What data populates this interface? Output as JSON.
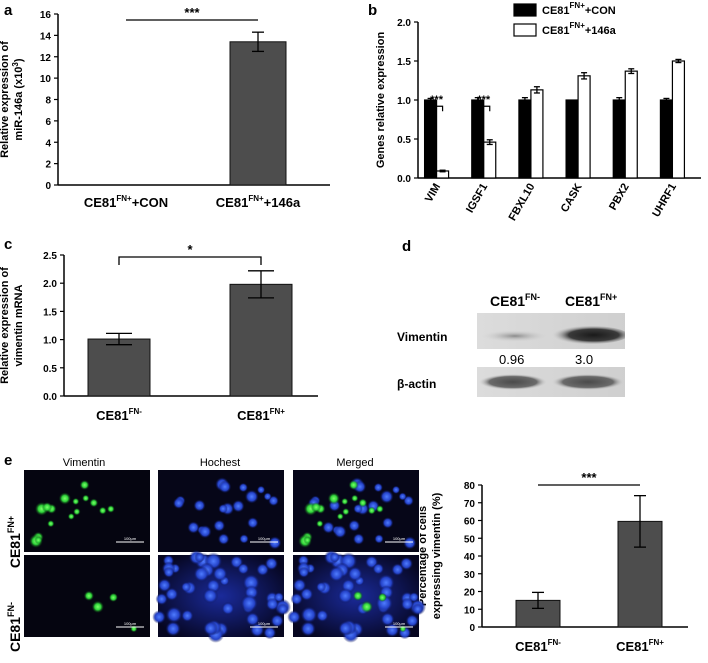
{
  "chart_data": [
    {
      "id": "a",
      "letter": "a",
      "type": "bar",
      "ylabel_line1": "Relative  expression of",
      "ylabel_line2": "miR-146a (x10",
      "ylabel_sup": "3",
      "ylabel_end": ")",
      "ylim": [
        0,
        16
      ],
      "yticks": [
        "0",
        "2",
        "4",
        "6",
        "8",
        "10",
        "12",
        "14",
        "16"
      ],
      "categories": [
        {
          "base": "CE81",
          "sup": "FN+",
          "suffix": "+CON"
        },
        {
          "base": "CE81",
          "sup": "FN+",
          "suffix": "+146a"
        }
      ],
      "values": [
        0,
        13.4
      ],
      "errors": [
        0,
        0.9
      ],
      "significance": "***",
      "bar_color": "#4d4d4d"
    },
    {
      "id": "b",
      "letter": "b",
      "type": "bar",
      "ylabel": "Genes relative expression",
      "ylim": [
        0,
        2.0
      ],
      "yticks": [
        "0.0",
        "0.5",
        "1.0",
        "1.5",
        "2.0"
      ],
      "categories": [
        "VIM",
        "IGSF1",
        "FBXL10",
        "CASK",
        "PBX2",
        "UHRF1"
      ],
      "series": [
        {
          "legend_base": "CE81",
          "legend_sup": "FN+",
          "legend_suffix": "+CON",
          "color": "#000000",
          "values": [
            1.0,
            1.0,
            1.0,
            1.0,
            1.0,
            1.0
          ],
          "errors": [
            0.02,
            0.03,
            0.03,
            0.0,
            0.03,
            0.02
          ]
        },
        {
          "legend_base": "CE81",
          "legend_sup": "FN+",
          "legend_suffix": "+146a",
          "color": "#ffffff",
          "values": [
            0.09,
            0.46,
            1.13,
            1.31,
            1.37,
            1.5
          ],
          "errors": [
            0.01,
            0.03,
            0.04,
            0.04,
            0.03,
            0.02
          ]
        }
      ],
      "significance": [
        {
          "category": "VIM",
          "label": "***"
        },
        {
          "category": "IGSF1",
          "label": "***"
        }
      ],
      "legend_position": "top-right"
    },
    {
      "id": "c",
      "letter": "c",
      "type": "bar",
      "ylabel_line1": "Relative expression of",
      "ylabel_line2": "vimentin mRNA",
      "ylim": [
        0,
        2.5
      ],
      "yticks": [
        "0.0",
        "0.5",
        "1.0",
        "1.5",
        "2.0",
        "2.5"
      ],
      "categories": [
        {
          "base": "CE81",
          "sup": "FN-",
          "suffix": ""
        },
        {
          "base": "CE81",
          "sup": "FN+",
          "suffix": ""
        }
      ],
      "values": [
        1.01,
        1.98
      ],
      "errors": [
        0.1,
        0.24
      ],
      "significance": "*",
      "bar_color": "#4d4d4d"
    },
    {
      "id": "e",
      "letter": "",
      "type": "bar",
      "ylabel_line1": "Percentage of cells",
      "ylabel_line2": "expressing vimentin (%)",
      "ylim": [
        0,
        80
      ],
      "yticks": [
        "0",
        "10",
        "20",
        "30",
        "40",
        "50",
        "60",
        "70",
        "80"
      ],
      "categories": [
        {
          "base": "CE81",
          "sup": "FN-",
          "suffix": ""
        },
        {
          "base": "CE81",
          "sup": "FN+",
          "suffix": ""
        }
      ],
      "values": [
        15,
        59.5
      ],
      "errors": [
        4.5,
        14.5
      ],
      "significance": "***",
      "bar_color": "#4d4d4d"
    }
  ],
  "blot": {
    "letter": "d",
    "lanes": [
      {
        "base": "CE81",
        "sup": "FN-"
      },
      {
        "base": "CE81",
        "sup": "FN+"
      }
    ],
    "rows": [
      {
        "label": "Vimentin",
        "quant": [
          "0.96",
          "3.0"
        ]
      },
      {
        "label": "β-actin"
      }
    ]
  },
  "micrographs": {
    "letter": "e",
    "columns": [
      "Vimentin",
      "Hochest",
      "Merged"
    ],
    "rows": [
      {
        "base": "CE81",
        "sup": "FN+"
      },
      {
        "base": "CE81",
        "sup": "FN-"
      }
    ],
    "scale_label": "100μm",
    "colors": {
      "green": "#2fd43a",
      "blue": "#2f4fe0",
      "bg": "#050510"
    }
  }
}
